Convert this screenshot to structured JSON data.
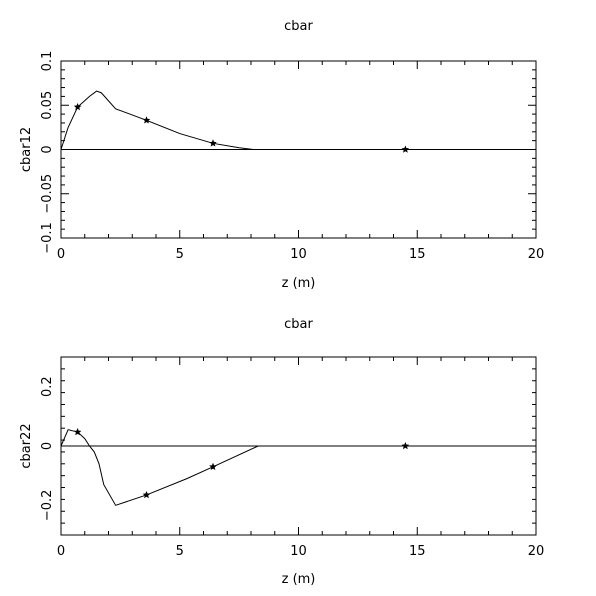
{
  "chart_data": [
    {
      "type": "line",
      "title": "cbar",
      "xlabel": "z (m)",
      "ylabel": "cbar12",
      "xlim": [
        0,
        20
      ],
      "ylim": [
        -0.1,
        0.1
      ],
      "xticks": [
        0,
        5,
        10,
        15,
        20
      ],
      "xtick_labels": [
        "0",
        "5",
        "10",
        "15",
        "20"
      ],
      "yticks": [
        -0.1,
        -0.05,
        0,
        0.05,
        0.1
      ],
      "ytick_labels": [
        "−0.1",
        "−0.05",
        "0",
        "0.05",
        "0.1"
      ],
      "zero_line": true,
      "grid": false,
      "series": [
        {
          "x": [
            0,
            0.3,
            0.7,
            1.2,
            1.5,
            1.7,
            2.3,
            3.6,
            5.0,
            6.4,
            7.5,
            8.1
          ],
          "y": [
            0,
            0.025,
            0.048,
            0.06,
            0.066,
            0.064,
            0.046,
            0.033,
            0.018,
            0.007,
            0.002,
            0.0
          ],
          "markers": {
            "x": [
              0.7,
              3.6,
              6.4
            ],
            "y": [
              0.048,
              0.033,
              0.007
            ]
          }
        },
        {
          "x": [
            10.6,
            13.0
          ],
          "y": [
            0,
            0
          ]
        },
        {
          "x": [
            14.5
          ],
          "y": [
            0
          ],
          "markers": {
            "x": [
              14.5
            ],
            "y": [
              0
            ]
          }
        }
      ]
    },
    {
      "type": "line",
      "title": "cbar",
      "xlabel": "z (m)",
      "ylabel": "cbar22",
      "xlim": [
        0,
        20
      ],
      "ylim": [
        -0.3,
        0.3
      ],
      "xticks": [
        0,
        5,
        10,
        15,
        20
      ],
      "xtick_labels": [
        "0",
        "5",
        "10",
        "15",
        "20"
      ],
      "yticks": [
        -0.2,
        0,
        0.2
      ],
      "ytick_labels": [
        "−0.2",
        "0",
        "0.2"
      ],
      "zero_line": true,
      "grid": false,
      "series": [
        {
          "x": [
            0,
            0.3,
            0.7,
            1.0,
            1.2,
            1.4,
            1.6,
            1.8,
            2.3,
            3.6,
            5.3,
            6.4,
            8.3,
            20
          ],
          "y": [
            0,
            0.055,
            0.047,
            0.025,
            0.0,
            -0.02,
            -0.06,
            -0.13,
            -0.2,
            -0.165,
            -0.11,
            -0.07,
            0.0,
            0.0
          ],
          "markers": {
            "x": [
              0.7,
              3.6,
              6.4,
              14.5
            ],
            "y": [
              0.047,
              -0.165,
              -0.07,
              0.0
            ]
          }
        }
      ]
    }
  ]
}
